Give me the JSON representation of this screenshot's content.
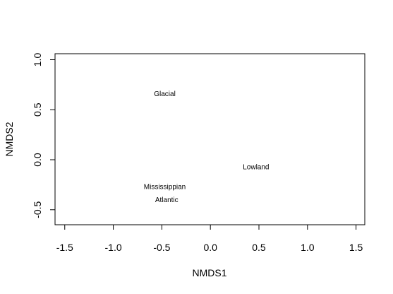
{
  "chart_data": {
    "type": "scatter",
    "title": "",
    "xlabel": "NMDS1",
    "ylabel": "NMDS2",
    "xlim": [
      -1.6,
      1.59
    ],
    "ylim": [
      -0.65,
      1.06
    ],
    "x_ticks": [
      -1.5,
      -1.0,
      -0.5,
      0.0,
      0.5,
      1.0,
      1.5
    ],
    "x_tick_labels": [
      "-1.5",
      "-1.0",
      "-0.5",
      "0.0",
      "0.5",
      "1.0",
      "1.5"
    ],
    "y_ticks": [
      -0.5,
      0.0,
      0.5,
      1.0
    ],
    "y_tick_labels": [
      "-0.5",
      "0.0",
      "0.5",
      "1.0"
    ],
    "grid": false,
    "marker": "text-label",
    "points": [
      {
        "label": "Glacial",
        "x": -0.47,
        "y": 0.66
      },
      {
        "label": "Lowland",
        "x": 0.47,
        "y": -0.07
      },
      {
        "label": "Mississippian",
        "x": -0.47,
        "y": -0.27
      },
      {
        "label": "Atlantic",
        "x": -0.45,
        "y": -0.4
      }
    ]
  }
}
